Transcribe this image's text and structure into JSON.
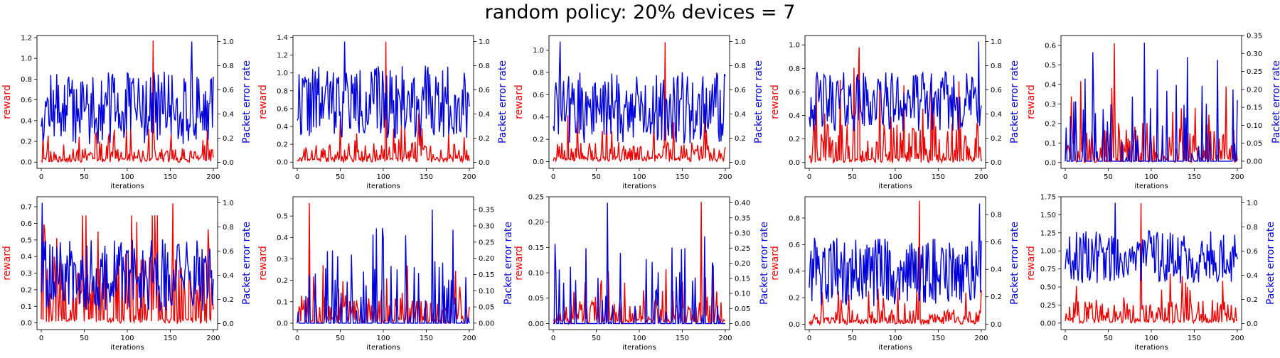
{
  "title": "random policy: 20% devices = 7",
  "colors": {
    "reward": "#ee0000",
    "per": "#0000dd"
  },
  "chart_data": [
    {
      "type": "line",
      "xlabel": "iterations",
      "ylabel_left": "reward",
      "ylabel_right": "Packet error rate",
      "xlim": [
        -5,
        205
      ],
      "xticks": [
        0,
        50,
        100,
        150,
        200
      ],
      "ylim_left": [
        -0.06,
        1.22
      ],
      "yticks_left": [
        "0.0",
        "0.2",
        "0.4",
        "0.6",
        "0.8",
        "1.0",
        "1.2"
      ],
      "ylim_right": [
        -0.05,
        1.05
      ],
      "yticks_right": [
        "0.0",
        "0.2",
        "0.4",
        "0.6",
        "0.8",
        "1.0"
      ],
      "reward": {
        "max": 1.17,
        "peak_at": 130,
        "base": 0.06,
        "seed": 11
      },
      "per": {
        "max": 1.0,
        "peak_at": 175,
        "level": 0.45,
        "spread": 0.3,
        "seed": 12
      }
    },
    {
      "type": "line",
      "xlabel": "iterations",
      "ylabel_left": "reward",
      "ylabel_right": "Packet error rate",
      "xlim": [
        -5,
        205
      ],
      "xticks": [
        0,
        50,
        100,
        150,
        200
      ],
      "ylim_left": [
        -0.07,
        1.42
      ],
      "yticks_left": [
        "0.0",
        "0.2",
        "0.4",
        "0.6",
        "0.8",
        "1.0",
        "1.2",
        "1.4"
      ],
      "ylim_right": [
        -0.05,
        1.05
      ],
      "yticks_right": [
        "0.0",
        "0.2",
        "0.4",
        "0.6",
        "0.8",
        "1.0"
      ],
      "reward": {
        "max": 1.35,
        "peak_at": 103,
        "base": 0.1,
        "seed": 21
      },
      "per": {
        "max": 1.0,
        "peak_at": 55,
        "level": 0.5,
        "spread": 0.3,
        "seed": 22
      }
    },
    {
      "type": "line",
      "xlabel": "iterations",
      "ylabel_left": "reward",
      "ylabel_right": "Packet error rate",
      "xlim": [
        -5,
        205
      ],
      "xticks": [
        0,
        50,
        100,
        150,
        200
      ],
      "ylim_left": [
        -0.06,
        1.13
      ],
      "yticks_left": [
        "0.0",
        "0.2",
        "0.4",
        "0.6",
        "0.8",
        "1.0"
      ],
      "ylim_right": [
        -0.05,
        1.05
      ],
      "yticks_right": [
        "0.0",
        "0.2",
        "0.4",
        "0.6",
        "0.8",
        "1.0"
      ],
      "reward": {
        "max": 1.07,
        "peak_at": 130,
        "base": 0.08,
        "seed": 31
      },
      "per": {
        "max": 1.0,
        "peak_at": 8,
        "level": 0.45,
        "spread": 0.3,
        "seed": 32
      }
    },
    {
      "type": "line",
      "xlabel": "iterations",
      "ylabel_left": "reward",
      "ylabel_right": "Packet error rate",
      "xlim": [
        -5,
        205
      ],
      "xticks": [
        0,
        50,
        100,
        150,
        200
      ],
      "ylim_left": [
        -0.05,
        1.08
      ],
      "yticks_left": [
        "0.0",
        "0.2",
        "0.4",
        "0.6",
        "0.8",
        "1.0"
      ],
      "ylim_right": [
        -0.05,
        1.05
      ],
      "yticks_right": [
        "0.0",
        "0.2",
        "0.4",
        "0.6",
        "0.8",
        "1.0"
      ],
      "reward": {
        "max": 0.98,
        "peak_at": 58,
        "base": 0.15,
        "seed": 41
      },
      "per": {
        "max": 1.0,
        "peak_at": 197,
        "level": 0.5,
        "spread": 0.25,
        "seed": 42
      }
    },
    {
      "type": "line",
      "xlabel": "iterations",
      "ylabel_left": "reward",
      "ylabel_right": "Packet error rate",
      "xlim": [
        -5,
        205
      ],
      "xticks": [
        0,
        50,
        100,
        150,
        200
      ],
      "ylim_left": [
        -0.03,
        0.65
      ],
      "yticks_left": [
        "0.0",
        "0.1",
        "0.2",
        "0.3",
        "0.4",
        "0.5",
        "0.6"
      ],
      "ylim_right": [
        -0.02,
        0.35
      ],
      "yticks_right": [
        "0.00",
        "0.05",
        "0.10",
        "0.15",
        "0.20",
        "0.25",
        "0.30",
        "0.35"
      ],
      "reward": {
        "max": 0.61,
        "peak_at": 57,
        "base": 0.08,
        "seed": 51
      },
      "per": {
        "sparse": true,
        "max": 0.33,
        "peak_at": 92,
        "level": 0.0,
        "spread": 0.22,
        "seed": 52
      }
    },
    {
      "type": "line",
      "xlabel": "iterations",
      "ylabel_left": "reward",
      "ylabel_right": "Packet error rate",
      "xlim": [
        -5,
        205
      ],
      "xticks": [
        0,
        50,
        100,
        150,
        200
      ],
      "ylim_left": [
        -0.04,
        0.76
      ],
      "yticks_left": [
        "0.0",
        "0.1",
        "0.2",
        "0.3",
        "0.4",
        "0.5",
        "0.6",
        "0.7"
      ],
      "ylim_right": [
        -0.05,
        1.05
      ],
      "yticks_right": [
        "0.0",
        "0.2",
        "0.4",
        "0.6",
        "0.8",
        "1.0"
      ],
      "reward": {
        "max": 0.72,
        "peak_at": 153,
        "base": 0.2,
        "seed": 61
      },
      "per": {
        "max": 1.0,
        "peak_at": 1,
        "level": 0.4,
        "spread": 0.3,
        "seed": 62
      }
    },
    {
      "type": "line",
      "xlabel": "iterations",
      "ylabel_left": "reward",
      "ylabel_right": "Packet error rate",
      "xlim": [
        -5,
        205
      ],
      "xticks": [
        0,
        50,
        100,
        150,
        200
      ],
      "ylim_left": [
        -0.03,
        0.59
      ],
      "yticks_left": [
        "0.0",
        "0.1",
        "0.2",
        "0.3",
        "0.4",
        "0.5"
      ],
      "ylim_right": [
        -0.02,
        0.39
      ],
      "yticks_right": [
        "0.00",
        "0.05",
        "0.10",
        "0.15",
        "0.20",
        "0.25",
        "0.30",
        "0.35"
      ],
      "reward": {
        "max": 0.56,
        "peak_at": 14,
        "base": 0.05,
        "seed": 71
      },
      "per": {
        "sparse": true,
        "max": 0.35,
        "peak_at": 157,
        "level": 0.0,
        "spread": 0.2,
        "seed": 72
      }
    },
    {
      "type": "line",
      "xlabel": "iterations",
      "ylabel_left": "reward",
      "ylabel_right": "Packet error rate",
      "xlim": [
        -5,
        205
      ],
      "xticks": [
        0,
        50,
        100,
        150,
        200
      ],
      "ylim_left": [
        -0.012,
        0.25
      ],
      "yticks_left": [
        "0.00",
        "0.05",
        "0.10",
        "0.15",
        "0.20",
        "0.25"
      ],
      "ylim_right": [
        -0.02,
        0.42
      ],
      "yticks_right": [
        "0.00",
        "0.05",
        "0.10",
        "0.15",
        "0.20",
        "0.25",
        "0.30",
        "0.35",
        "0.40"
      ],
      "reward": {
        "max": 0.24,
        "peak_at": 172,
        "base": 0.02,
        "seed": 81
      },
      "per": {
        "sparse": true,
        "max": 0.4,
        "peak_at": 63,
        "level": 0.0,
        "spread": 0.25,
        "seed": 82
      }
    },
    {
      "type": "line",
      "xlabel": "iterations",
      "ylabel_left": "reward",
      "ylabel_right": "Packet error rate",
      "xlim": [
        -5,
        205
      ],
      "xticks": [
        0,
        50,
        100,
        150,
        200
      ],
      "ylim_left": [
        -0.04,
        0.96
      ],
      "yticks_left": [
        "0.0",
        "0.2",
        "0.4",
        "0.6",
        "0.8"
      ],
      "ylim_right": [
        -0.04,
        0.93
      ],
      "yticks_right": [
        "0.0",
        "0.2",
        "0.4",
        "0.6",
        "0.8"
      ],
      "reward": {
        "max": 0.93,
        "peak_at": 128,
        "base": 0.05,
        "seed": 91
      },
      "per": {
        "max": 0.88,
        "peak_at": 198,
        "level": 0.38,
        "spread": 0.25,
        "seed": 92
      }
    },
    {
      "type": "line",
      "xlabel": "iterations",
      "ylabel_left": "reward",
      "ylabel_right": "Packet error rate",
      "xlim": [
        -5,
        205
      ],
      "xticks": [
        0,
        50,
        100,
        150,
        200
      ],
      "ylim_left": [
        -0.09,
        1.75
      ],
      "yticks_left": [
        "0.00",
        "0.25",
        "0.50",
        "0.75",
        "1.00",
        "1.25",
        "1.50",
        "1.75"
      ],
      "ylim_right": [
        -0.05,
        1.05
      ],
      "yticks_right": [
        "0.0",
        "0.2",
        "0.4",
        "0.6",
        "0.8",
        "1.0"
      ],
      "reward": {
        "max": 1.66,
        "peak_at": 88,
        "base": 0.15,
        "seed": 101
      },
      "per": {
        "max": 1.0,
        "peak_at": 58,
        "level": 0.55,
        "spread": 0.22,
        "seed": 102
      }
    }
  ]
}
